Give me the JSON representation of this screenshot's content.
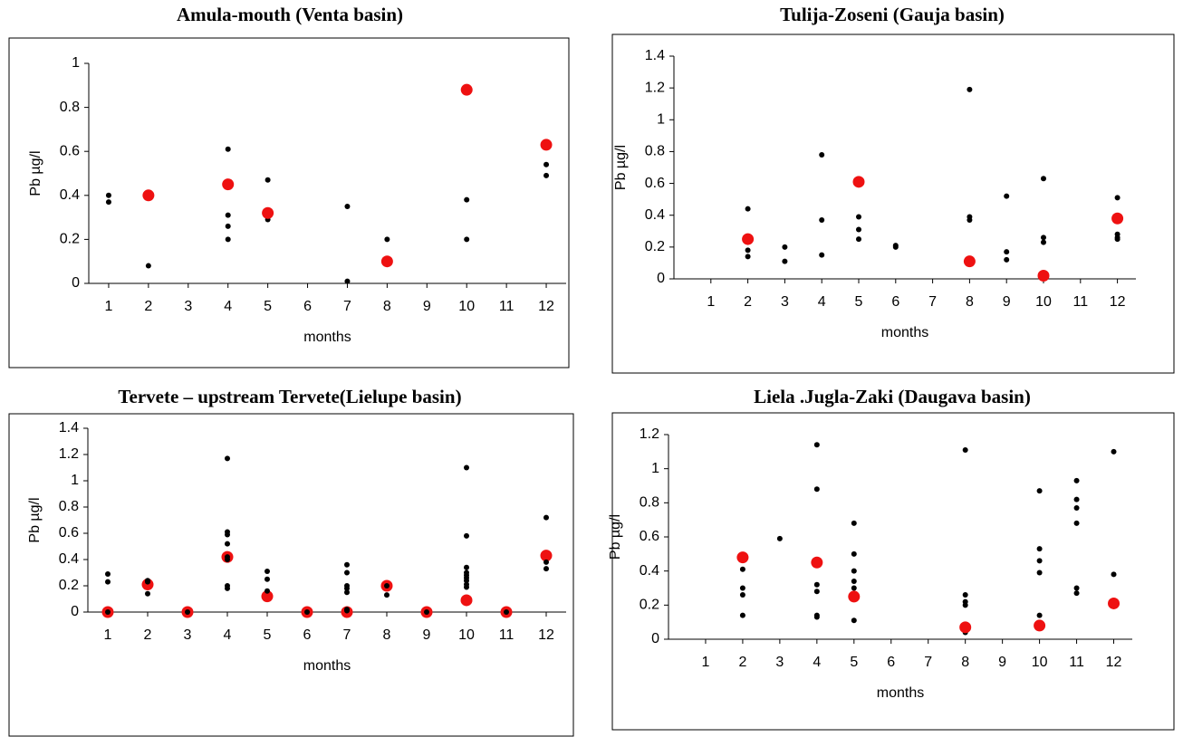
{
  "chart_data": [
    {
      "type": "scatter",
      "title": "Amula-mouth  (Venta basin)",
      "x_label": "months",
      "y_label": "Pb µg/l",
      "xlim": [
        0.5,
        12.5
      ],
      "xticks": [
        1,
        2,
        3,
        4,
        5,
        6,
        7,
        8,
        9,
        10,
        11,
        12
      ],
      "ylim": [
        0,
        1
      ],
      "yticks": [
        0,
        0.2,
        0.4,
        0.6,
        0.8,
        1
      ],
      "series": [
        {
          "color": "#000000",
          "x": [
            1,
            1,
            2,
            4,
            4,
            4,
            4,
            5,
            5,
            7,
            7,
            8,
            10,
            10,
            12,
            12
          ],
          "values": [
            0.4,
            0.37,
            0.08,
            0.61,
            0.31,
            0.26,
            0.2,
            0.47,
            0.29,
            0.35,
            0.01,
            0.2,
            0.38,
            0.2,
            0.54,
            0.49
          ]
        },
        {
          "color": "#ee1111",
          "x": [
            2,
            4,
            5,
            8,
            10,
            12
          ],
          "values": [
            0.4,
            0.45,
            0.32,
            0.1,
            0.88,
            0.63
          ]
        }
      ]
    },
    {
      "type": "scatter",
      "title": "Tulija-Zoseni (Gauja basin)",
      "x_label": "months",
      "y_label": "Pb  µg/l",
      "xlim": [
        0,
        12.5
      ],
      "xticks": [
        1,
        2,
        3,
        4,
        5,
        6,
        7,
        8,
        9,
        10,
        11,
        12
      ],
      "ylim": [
        0,
        1.4
      ],
      "yticks": [
        0,
        0.2,
        0.4,
        0.6,
        0.8,
        1,
        1.2,
        1.4
      ],
      "series": [
        {
          "color": "#000000",
          "x": [
            2,
            2,
            2,
            3,
            3,
            4,
            4,
            4,
            5,
            5,
            5,
            6,
            6,
            8,
            8,
            8,
            9,
            9,
            9,
            10,
            10,
            10,
            12,
            12,
            12,
            12
          ],
          "values": [
            0.44,
            0.18,
            0.14,
            0.2,
            0.11,
            0.78,
            0.37,
            0.15,
            0.39,
            0.31,
            0.25,
            0.2,
            0.21,
            1.19,
            0.39,
            0.37,
            0.52,
            0.17,
            0.12,
            0.63,
            0.26,
            0.23,
            0.51,
            0.28,
            0.26,
            0.25
          ]
        },
        {
          "color": "#ee1111",
          "x": [
            2,
            5,
            8,
            10,
            12
          ],
          "values": [
            0.25,
            0.61,
            0.11,
            0.02,
            0.38
          ]
        }
      ]
    },
    {
      "type": "scatter",
      "title": "Tervete – upstream Tervete(Lielupe basin)",
      "x_label": "months",
      "y_label": "Pb µg/l",
      "xlim": [
        0.5,
        12.5
      ],
      "xticks": [
        1,
        2,
        3,
        4,
        5,
        6,
        7,
        8,
        9,
        10,
        11,
        12
      ],
      "ylim": [
        0,
        1.4
      ],
      "yticks": [
        0,
        0.2,
        0.4,
        0.6,
        0.8,
        1,
        1.2,
        1.4
      ],
      "series": [
        {
          "color": "#ee1111",
          "x": [
            1,
            2,
            3,
            4,
            5,
            6,
            7,
            8,
            9,
            10,
            11,
            12
          ],
          "values": [
            0,
            0.21,
            0,
            0.42,
            0.12,
            0,
            0,
            0.2,
            0,
            0.09,
            0,
            0.43
          ]
        },
        {
          "color": "#000000",
          "x": [
            1,
            1,
            1,
            2,
            2,
            2,
            3,
            4,
            4,
            4,
            4,
            4,
            4,
            4,
            4,
            5,
            5,
            5,
            6,
            7,
            7,
            7,
            7,
            7,
            7,
            7,
            8,
            8,
            9,
            10,
            10,
            10,
            10,
            10,
            10,
            10,
            10,
            10,
            11,
            12,
            12,
            12
          ],
          "values": [
            0.29,
            0.23,
            0,
            0.24,
            0.23,
            0.14,
            0,
            1.17,
            0.61,
            0.59,
            0.52,
            0.42,
            0.4,
            0.2,
            0.18,
            0.31,
            0.25,
            0.16,
            0,
            0.36,
            0.3,
            0.2,
            0.18,
            0.15,
            0.02,
            0.01,
            0.2,
            0.13,
            0,
            1.1,
            0.58,
            0.34,
            0.3,
            0.28,
            0.26,
            0.24,
            0.21,
            0.19,
            0,
            0.72,
            0.38,
            0.33
          ]
        }
      ]
    },
    {
      "type": "scatter",
      "title": "Liela .Jugla-Zaki (Daugava basin)",
      "x_label": "months",
      "y_label": "Pb  µg/l",
      "xlim": [
        0,
        12.5
      ],
      "xticks": [
        1,
        2,
        3,
        4,
        5,
        6,
        7,
        8,
        9,
        10,
        11,
        12
      ],
      "ylim": [
        0,
        1.2
      ],
      "yticks": [
        0,
        0.2,
        0.4,
        0.6,
        0.8,
        1,
        1.2
      ],
      "series": [
        {
          "color": "#000000",
          "x": [
            2,
            2,
            2,
            2,
            2,
            3,
            4,
            4,
            4,
            4,
            4,
            4,
            4,
            5,
            5,
            5,
            5,
            5,
            5,
            5,
            8,
            8,
            8,
            8,
            8,
            10,
            10,
            10,
            10,
            10,
            11,
            11,
            11,
            11,
            11,
            11,
            12,
            12
          ],
          "values": [
            0.47,
            0.41,
            0.3,
            0.26,
            0.14,
            0.59,
            1.14,
            0.88,
            0.45,
            0.32,
            0.28,
            0.14,
            0.13,
            0.68,
            0.5,
            0.4,
            0.34,
            0.3,
            0.26,
            0.11,
            1.11,
            0.26,
            0.22,
            0.2,
            0.04,
            0.87,
            0.53,
            0.46,
            0.39,
            0.14,
            0.93,
            0.82,
            0.77,
            0.68,
            0.3,
            0.27,
            1.1,
            0.38
          ]
        },
        {
          "color": "#ee1111",
          "x": [
            2,
            4,
            5,
            8,
            10,
            12
          ],
          "values": [
            0.48,
            0.45,
            0.25,
            0.07,
            0.08,
            0.21
          ]
        }
      ]
    }
  ]
}
